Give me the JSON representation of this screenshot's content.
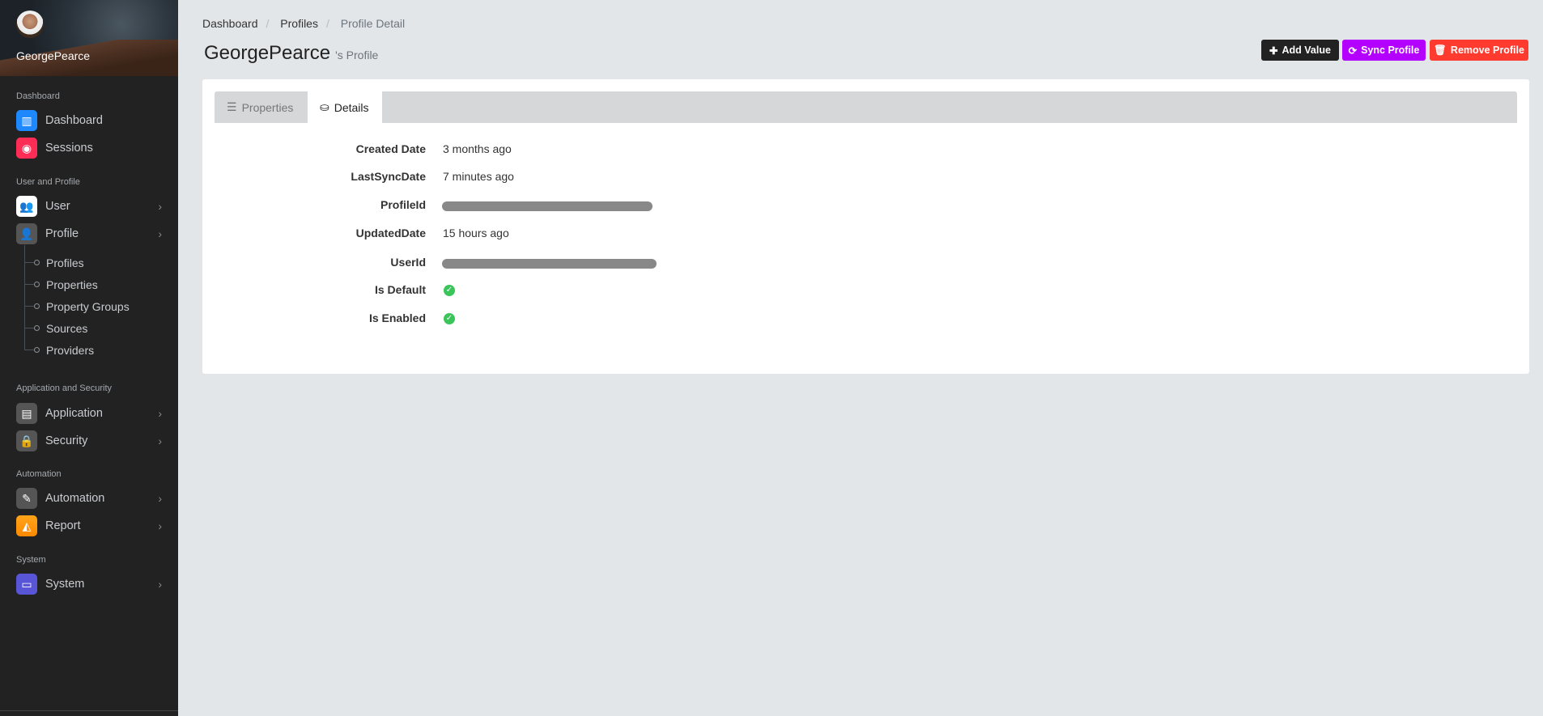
{
  "sidebar": {
    "username": "GeorgePearce",
    "sections": [
      {
        "label": "Dashboard",
        "items": [
          {
            "label": "Dashboard",
            "icon": "chart-icon",
            "color": "#1e88ff"
          },
          {
            "label": "Sessions",
            "icon": "record-icon",
            "color": "#ff2d55"
          }
        ]
      },
      {
        "label": "User and Profile",
        "items": [
          {
            "label": "User",
            "icon": "users-icon",
            "color": "#ffffff"
          },
          {
            "label": "Profile",
            "icon": "user-icon",
            "color": "#555555"
          }
        ]
      },
      {
        "label": "Application and Security",
        "items": [
          {
            "label": "Application",
            "icon": "archive-icon",
            "color": "#555555"
          },
          {
            "label": "Security",
            "icon": "lock-icon",
            "color": "#555555"
          }
        ]
      },
      {
        "label": "Automation",
        "items": [
          {
            "label": "Automation",
            "icon": "magic-wand-icon",
            "color": "#555555"
          },
          {
            "label": "Report",
            "icon": "area-chart-icon",
            "color": "#ff9500"
          }
        ]
      },
      {
        "label": "System",
        "items": [
          {
            "label": "System",
            "icon": "monitor-icon",
            "color": "#5856d6"
          }
        ]
      }
    ],
    "profile_sub": [
      "Profiles",
      "Properties",
      "Property Groups",
      "Sources",
      "Providers"
    ]
  },
  "breadcrumb": [
    "Dashboard",
    "Profiles",
    "Profile Detail"
  ],
  "title": {
    "name": "GeorgePearce",
    "suffix": "'s Profile"
  },
  "buttons": {
    "add": "Add Value",
    "sync": "Sync Profile",
    "remove": "Remove Profile"
  },
  "tabs": [
    {
      "label": "Properties",
      "active": false
    },
    {
      "label": "Details",
      "active": true
    }
  ],
  "details": [
    {
      "label": "Created Date",
      "value": "3 months ago"
    },
    {
      "label": "LastSyncDate",
      "value": "7 minutes ago"
    },
    {
      "label": "ProfileId",
      "redacted": true
    },
    {
      "label": "UpdatedDate",
      "value": "15 hours ago"
    },
    {
      "label": "UserId",
      "redacted": true
    },
    {
      "label": "Is Default",
      "check": true
    },
    {
      "label": "Is Enabled",
      "check": true
    }
  ]
}
